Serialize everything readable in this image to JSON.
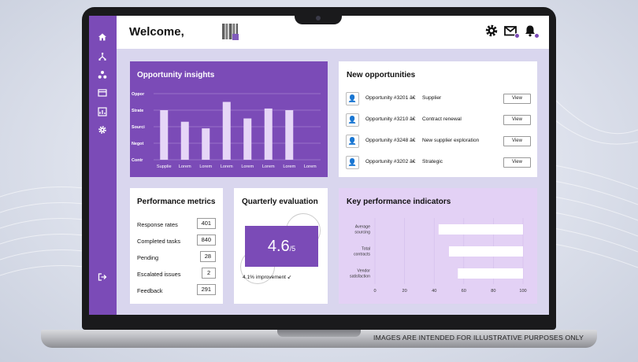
{
  "disclaimer": "IMAGES ARE INTENDED FOR ILLUSTRATIVE PURPOSES ONLY",
  "header": {
    "welcome": "Welcome,",
    "icons": [
      "gear-icon",
      "mail-icon",
      "bell-icon"
    ]
  },
  "sidebar": {
    "items": [
      "home-icon",
      "hierarchy-icon",
      "org-chart-icon",
      "card-icon",
      "chart-icon",
      "settings-icon"
    ],
    "logout": "logout-icon"
  },
  "colors": {
    "accent": "#7b4bb7",
    "kpi_bg": "#e3d1f5",
    "screen_bg": "#d9d6ee"
  },
  "opportunity_insights": {
    "title": "Opportunity insights",
    "chart_data": {
      "type": "bar",
      "title": "Opportunity insights",
      "y_categories": [
        "Oppor",
        "Strate",
        "Sourci",
        "Negot",
        "Contr"
      ],
      "categories": [
        "Supplie",
        "Lorem",
        "Lorem",
        "Lorem",
        "Lorem",
        "Lorem",
        "Lorem",
        "Lorem"
      ],
      "values": [
        3.0,
        2.3,
        1.9,
        3.5,
        2.5,
        3.1,
        3.0,
        0
      ],
      "grid": true
    }
  },
  "new_opportunities": {
    "title": "New opportunities",
    "rows": [
      {
        "name": "Opportunity #3201 â€",
        "category": "Supplier",
        "button": "View"
      },
      {
        "name": "Opportunity #3210 â€",
        "category": "Contract renewal",
        "button": "View"
      },
      {
        "name": "Opportunity #3248 â€",
        "category": "New supplier exploration",
        "button": "View"
      },
      {
        "name": "Opportunity #3202 â€",
        "category": "Strategic",
        "button": "View"
      }
    ]
  },
  "performance_metrics": {
    "title": "Performance metrics",
    "rows": [
      {
        "label": "Response rates",
        "value": "401"
      },
      {
        "label": "Completed tasks",
        "value": "840"
      },
      {
        "label": "Pending",
        "value": "28"
      },
      {
        "label": "Escalated issues",
        "value": "2"
      },
      {
        "label": "Feedback",
        "value": "291"
      }
    ]
  },
  "quarterly_evaluation": {
    "title": "Quarterly evaluation",
    "score": "4.6",
    "suffix": "/5",
    "improvement": "4.1% improvement ↙"
  },
  "kpi": {
    "title": "Key performance indicators",
    "chart_data": {
      "type": "bar",
      "orientation": "horizontal",
      "categories": [
        [
          "Average",
          "sourcing"
        ],
        [
          "Total",
          "contracts"
        ],
        [
          "Vendor",
          "satisfaction"
        ]
      ],
      "values": [
        57,
        50,
        44
      ],
      "xlim": [
        0,
        100
      ],
      "xticks": [
        "0",
        "20",
        "40",
        "60",
        "80",
        "100"
      ],
      "grid": true
    }
  }
}
